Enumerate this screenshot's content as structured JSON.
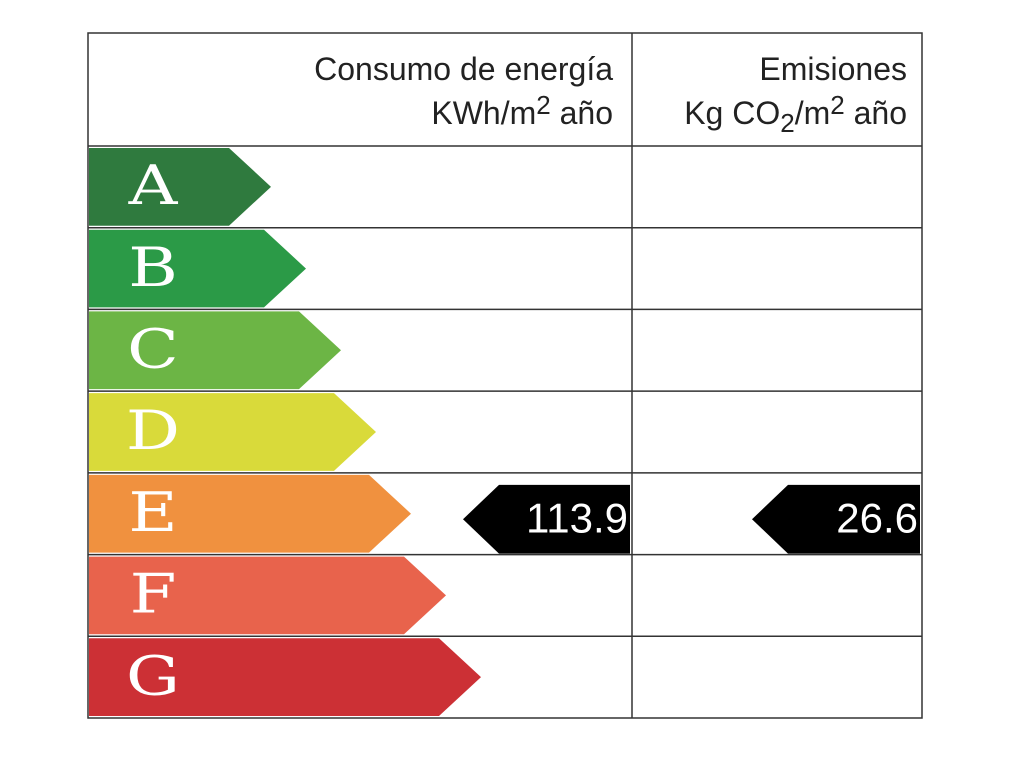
{
  "header": {
    "energy": {
      "title": "Consumo de energía",
      "unit": [
        "KWh/m",
        "2",
        " año"
      ]
    },
    "emissions": {
      "title": "Emisiones",
      "unit": [
        "Kg CO",
        "2",
        "/m",
        "2",
        " año"
      ]
    }
  },
  "grades": [
    {
      "label": "A",
      "color": "#2f7a3e"
    },
    {
      "label": "B",
      "color": "#2b9a47"
    },
    {
      "label": "C",
      "color": "#6cb545"
    },
    {
      "label": "D",
      "color": "#d9da3a"
    },
    {
      "label": "E",
      "color": "#f0913f"
    },
    {
      "label": "F",
      "color": "#e8634c"
    },
    {
      "label": "G",
      "color": "#cc3035"
    }
  ],
  "energy": {
    "value": 113.9,
    "rating": "E"
  },
  "emissions": {
    "value": 26.6,
    "rating": "E"
  }
}
